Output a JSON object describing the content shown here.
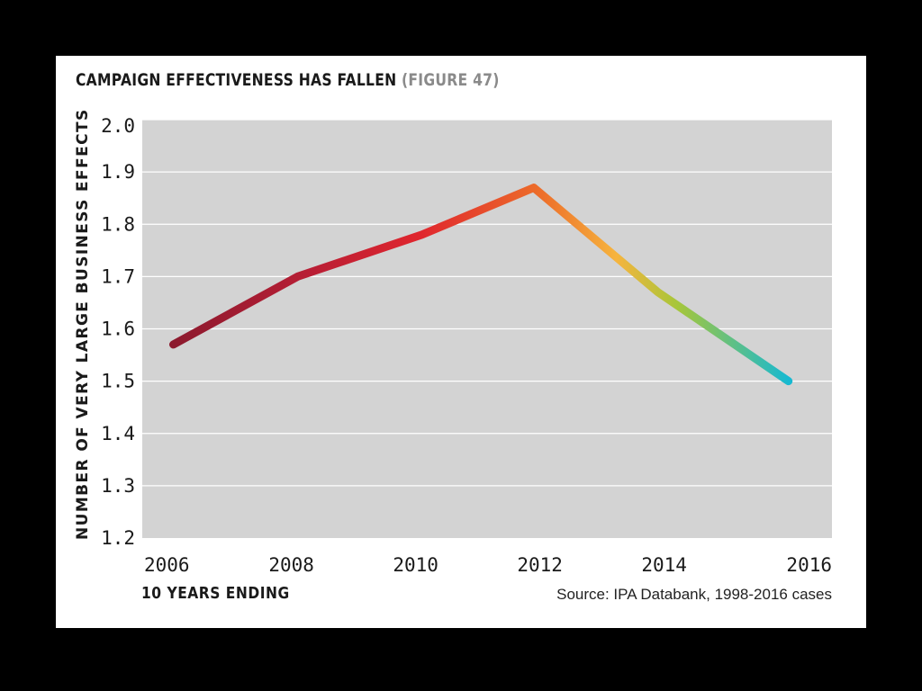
{
  "header": {
    "title": "CAMPAIGN EFFECTIVENESS HAS FALLEN",
    "figure_ref": "(FIGURE 47)"
  },
  "footer": {
    "source": "Source: IPA Databank, 1998-2016 cases"
  },
  "colors": {
    "plot_background": "#d3d3d3",
    "gridline": "#ffffff",
    "line_gradient": [
      "#8c1a2e",
      "#b81e35",
      "#e0262e",
      "#ed6f2a",
      "#f6b43e",
      "#a6c63a",
      "#17b9d1"
    ]
  },
  "chart_data": {
    "type": "line",
    "title": "CAMPAIGN EFFECTIVENESS HAS FALLEN (FIGURE 47)",
    "xlabel": "10 YEARS ENDING",
    "ylabel": "NUMBER OF VERY LARGE BUSINESS EFFECTS",
    "x_ticks": [
      "2006",
      "2008",
      "2010",
      "2012",
      "2014",
      "2016"
    ],
    "y_ticks": [
      "1.2",
      "1.3",
      "1.4",
      "1.5",
      "1.6",
      "1.7",
      "1.8",
      "1.9",
      "2.0"
    ],
    "xlim": [
      2005.6,
      2016.7
    ],
    "ylim": [
      1.2,
      2.0
    ],
    "grid": true,
    "legend": "none",
    "series": [
      {
        "x": [
          2006.1,
          2008.1,
          2010.1,
          2011.9,
          2013.9,
          2016.0
        ],
        "y": [
          1.57,
          1.7,
          1.78,
          1.87,
          1.67,
          1.5
        ]
      }
    ]
  }
}
